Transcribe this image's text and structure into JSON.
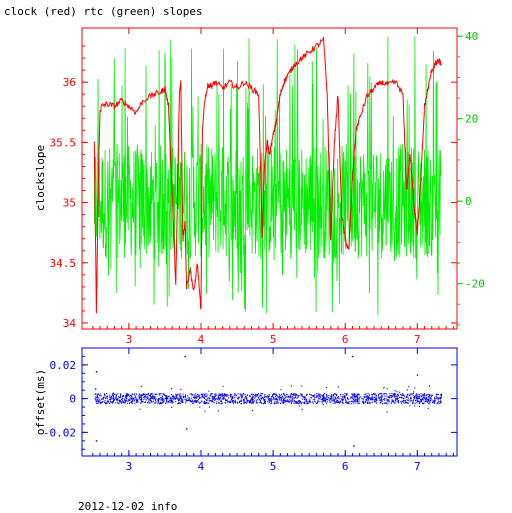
{
  "title": "clock (red) rtc (green) slopes",
  "footer": "2012-12-02 info",
  "colors": {
    "clock": "#ff0000",
    "rtc": "#00ee00",
    "offset": "#0000ff",
    "top_frame": "#ff0000",
    "bottom_frame": "#0000ff",
    "right_axis": "#00cc00"
  },
  "chart_data": [
    {
      "type": "line",
      "title": "clock (red) rtc (green) slopes",
      "ylabel": "clockslope",
      "xlim": [
        2.35,
        7.55
      ],
      "ylim": [
        33.95,
        36.45
      ],
      "y2lim": [
        -31,
        42
      ],
      "xticks": [
        "3",
        "4",
        "5",
        "6",
        "7"
      ],
      "yticks": [
        "34",
        "34.5",
        "35",
        "35.5",
        "36"
      ],
      "y2ticks": [
        "-20",
        "0",
        "20",
        "40"
      ],
      "grid": false,
      "series": [
        {
          "name": "clock",
          "axis": "left",
          "x": [
            2.52,
            2.55,
            2.58,
            2.6,
            2.62,
            2.7,
            2.8,
            2.9,
            3.0,
            3.1,
            3.2,
            3.35,
            3.45,
            3.5,
            3.55,
            3.6,
            3.65,
            3.7,
            3.72,
            3.75,
            3.78,
            3.8,
            3.85,
            3.9,
            3.95,
            4.0,
            4.02,
            4.05,
            4.1,
            4.15,
            4.2,
            4.3,
            4.4,
            4.5,
            4.6,
            4.7,
            4.8,
            4.85,
            4.88,
            4.92,
            4.95,
            5.0,
            5.05,
            5.1,
            5.15,
            5.2,
            5.3,
            5.4,
            5.5,
            5.6,
            5.7,
            5.75,
            5.8,
            5.85,
            5.9,
            5.95,
            6.0,
            6.05,
            6.1,
            6.15,
            6.2,
            6.3,
            6.4,
            6.5,
            6.6,
            6.7,
            6.8,
            6.85,
            6.9,
            6.95,
            7.0,
            7.05,
            7.1,
            7.15,
            7.2,
            7.25,
            7.3,
            7.33
          ],
          "y": [
            35.5,
            34.08,
            35.3,
            35.75,
            35.8,
            35.82,
            35.8,
            35.85,
            35.8,
            35.75,
            35.85,
            35.9,
            35.92,
            35.95,
            35.8,
            35.1,
            34.3,
            35.9,
            36.0,
            34.7,
            34.85,
            34.3,
            34.45,
            34.25,
            34.5,
            34.1,
            35.6,
            35.85,
            35.98,
            35.97,
            36.0,
            35.95,
            36.0,
            35.95,
            36.0,
            35.95,
            35.9,
            34.7,
            35.3,
            35.5,
            35.4,
            35.55,
            35.7,
            35.9,
            36.0,
            36.05,
            36.15,
            36.2,
            36.25,
            36.3,
            36.35,
            35.9,
            34.7,
            35.5,
            35.9,
            34.9,
            34.7,
            34.6,
            35.2,
            35.6,
            35.7,
            35.88,
            35.95,
            36.0,
            35.98,
            36.0,
            35.9,
            35.1,
            35.4,
            35.0,
            34.75,
            35.2,
            35.8,
            35.95,
            36.1,
            36.15,
            36.18,
            36.15
          ]
        },
        {
          "name": "rtc",
          "axis": "right",
          "x_range": [
            2.52,
            7.33
          ],
          "description_band": {
            "typical_low": -14,
            "typical_high": 14,
            "spike_min": -28,
            "spike_max": 40
          }
        }
      ]
    },
    {
      "type": "scatter",
      "ylabel": "offset(ms)",
      "xlim": [
        2.35,
        7.55
      ],
      "ylim": [
        -0.034,
        0.03
      ],
      "xticks": [
        "3",
        "4",
        "5",
        "6",
        "7"
      ],
      "yticks": [
        "-0.02",
        "0",
        "0.02"
      ],
      "grid": false,
      "series": [
        {
          "name": "offset",
          "x_range": [
            2.52,
            7.33
          ],
          "typical_low": -0.003,
          "typical_high": 0.003,
          "outliers": [
            {
              "x": 2.55,
              "y": -0.025
            },
            {
              "x": 2.55,
              "y": 0.016
            },
            {
              "x": 3.78,
              "y": 0.025
            },
            {
              "x": 3.8,
              "y": -0.018
            },
            {
              "x": 6.1,
              "y": 0.025
            },
            {
              "x": 6.12,
              "y": -0.028
            },
            {
              "x": 7.0,
              "y": 0.014
            }
          ]
        }
      ]
    }
  ]
}
